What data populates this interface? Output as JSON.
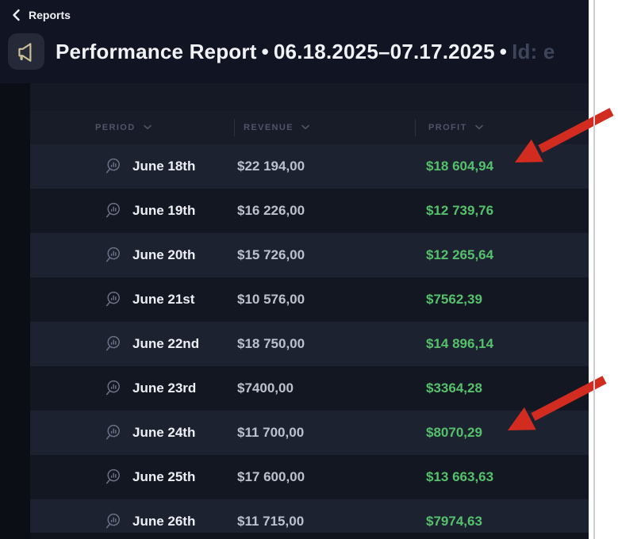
{
  "breadcrumb": {
    "back_icon": "chevron-left-icon",
    "label": "Reports"
  },
  "header": {
    "app_icon": "megaphone-icon",
    "title_main": "Performance Report",
    "bullet": "•",
    "date_range": "06.18.2025–07.17.2025",
    "id_label": "Id: e"
  },
  "table": {
    "columns": [
      {
        "label": "PERIOD",
        "sort_icon": "chevron-down-icon"
      },
      {
        "label": "REVENUE",
        "sort_icon": "chevron-down-icon"
      },
      {
        "label": "PROFIT",
        "sort_icon": "chevron-down-icon"
      }
    ],
    "row_icon": "magnifier-chart-icon",
    "rows": [
      {
        "period": "June 18th",
        "revenue": "$22 194,00",
        "profit": "$18 604,94"
      },
      {
        "period": "June 19th",
        "revenue": "$16 226,00",
        "profit": "$12 739,76"
      },
      {
        "period": "June 20th",
        "revenue": "$15 726,00",
        "profit": "$12 265,64"
      },
      {
        "period": "June 21st",
        "revenue": "$10 576,00",
        "profit": "$7562,39"
      },
      {
        "period": "June 22nd",
        "revenue": "$18 750,00",
        "profit": "$14 896,14"
      },
      {
        "period": "June 23rd",
        "revenue": "$7400,00",
        "profit": "$3364,28"
      },
      {
        "period": "June 24th",
        "revenue": "$11 700,00",
        "profit": "$8070,29"
      },
      {
        "period": "June 25th",
        "revenue": "$17 600,00",
        "profit": "$13 663,63"
      },
      {
        "period": "June 26th",
        "revenue": "$11 715,00",
        "profit": "$7974,63"
      }
    ]
  },
  "annotations": {
    "arrow_color": "#d22c20",
    "arrows_point_to": [
      "$18 604,94",
      "$8070,29"
    ]
  },
  "colors": {
    "app_background": "#111422",
    "profit_green": "#55c16b",
    "revenue_grey": "#bcc1cd",
    "icon_tan": "#cdc096",
    "row_light": "#1d2231",
    "row_dark": "#131722"
  }
}
